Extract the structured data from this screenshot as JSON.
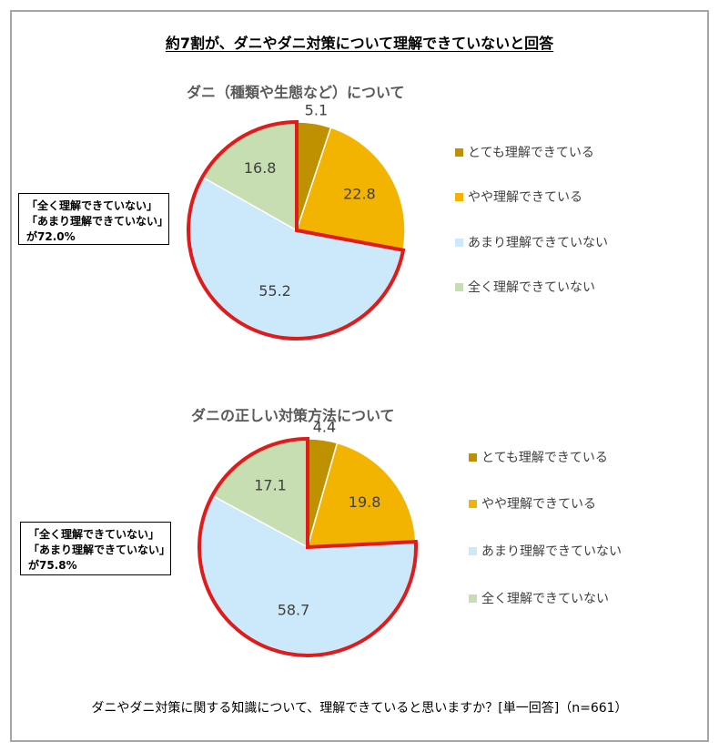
{
  "title": "約7割が、ダニやダニ対策について理解できていないと回答",
  "footnote": "ダニやダニ対策に関する知識について、理解できていると思いますか？[単一回答]（n=661）",
  "colors": {
    "slice_1": "#bf9000",
    "slice_2": "#f2b400",
    "slice_3": "#cce9fb",
    "slice_4": "#c6deb2",
    "highlight": "#e01b1b"
  },
  "chart_data": [
    {
      "type": "pie",
      "title": "ダニ（種類や生態など）について",
      "categories": [
        "とても理解できている",
        "やや理解できている",
        "あまり理解できていない",
        "全く理解できていない"
      ],
      "values": [
        5.1,
        22.8,
        55.2,
        16.8
      ],
      "legend_position": "right",
      "callout": [
        "「全く理解できていない」",
        "「あまり理解できていない」",
        "が72.0%"
      ]
    },
    {
      "type": "pie",
      "title": "ダニの正しい対策方法について",
      "categories": [
        "とても理解できている",
        "やや理解できている",
        "あまり理解できていない",
        "全く理解できていない"
      ],
      "values": [
        4.4,
        19.8,
        58.7,
        17.1
      ],
      "legend_position": "right",
      "callout": [
        "「全く理解できていない」",
        "「あまり理解できていない」",
        "が75.8%"
      ]
    }
  ]
}
